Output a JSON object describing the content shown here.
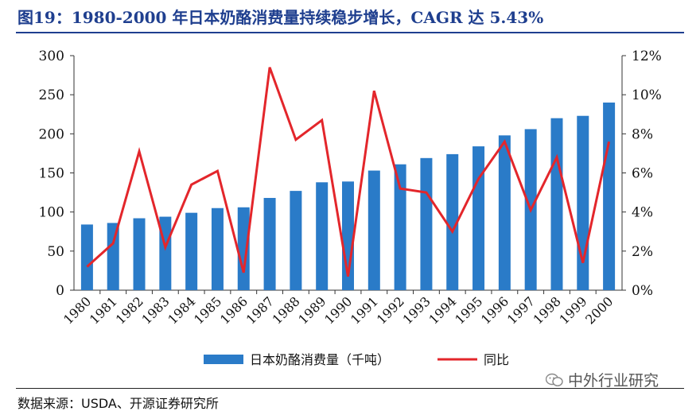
{
  "title": "图19：1980-2000 年日本奶酪消费量持续稳步增长，CAGR 达 5.43%",
  "source": "数据来源：USDA、开源证券研究所",
  "watermark": "中外行业研究",
  "colors": {
    "bar": "#2a7bc8",
    "line": "#e3262b",
    "title": "#1f3f8f"
  },
  "chart_data": {
    "type": "bar",
    "categories": [
      "1980",
      "1981",
      "1982",
      "1983",
      "1984",
      "1985",
      "1986",
      "1987",
      "1988",
      "1989",
      "1990",
      "1991",
      "1992",
      "1993",
      "1994",
      "1995",
      "1996",
      "1997",
      "1998",
      "1999",
      "2000"
    ],
    "series": [
      {
        "name": "日本奶酪消费量（千吨）",
        "type": "bar",
        "axis": "left",
        "values": [
          84,
          86,
          92,
          94,
          99,
          105,
          106,
          118,
          127,
          138,
          139,
          153,
          161,
          169,
          174,
          184,
          198,
          206,
          220,
          223,
          240
        ]
      },
      {
        "name": "同比",
        "type": "line",
        "axis": "right",
        "values": [
          1.2,
          2.4,
          7.1,
          2.2,
          5.4,
          6.1,
          0.9,
          11.4,
          7.7,
          8.7,
          0.7,
          10.2,
          5.2,
          5.0,
          3.0,
          5.7,
          7.6,
          4.1,
          6.8,
          1.4,
          7.6
        ]
      }
    ],
    "yaxis_left": {
      "min": 0,
      "max": 300,
      "ticks": [
        "0",
        "50",
        "100",
        "150",
        "200",
        "250",
        "300"
      ]
    },
    "yaxis_right": {
      "min": 0,
      "max": 12,
      "ticks": [
        "0%",
        "2%",
        "4%",
        "6%",
        "8%",
        "10%",
        "12%"
      ]
    },
    "legend": {
      "position": "bottom",
      "items": [
        "日本奶酪消费量（千吨）",
        "同比"
      ]
    },
    "grid": false
  }
}
